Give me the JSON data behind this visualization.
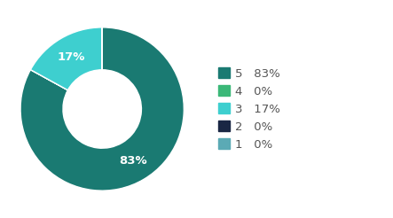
{
  "slices": [
    83,
    0.001,
    17,
    0.001,
    0.001
  ],
  "colors": [
    "#1a7a72",
    "#3bb878",
    "#3ecfcf",
    "#1a2744",
    "#5baab5"
  ],
  "slice_labels": [
    {
      "text": "83%",
      "index": 0
    },
    {
      "text": "17%",
      "index": 2
    }
  ],
  "legend_items": [
    {
      "label": "5",
      "pct": "83%",
      "color": "#1a7a72"
    },
    {
      "label": "4",
      "pct": "0%",
      "color": "#3bb878"
    },
    {
      "label": "3",
      "pct": "17%",
      "color": "#3ecfcf"
    },
    {
      "label": "2",
      "pct": "0%",
      "color": "#1a2744"
    },
    {
      "label": "1",
      "pct": "0%",
      "color": "#5baab5"
    }
  ],
  "bg_color": "#ffffff",
  "text_color": "#555555",
  "label_color": "#ffffff",
  "font_size": 9.5,
  "legend_font_size": 9.5,
  "donut_width": 0.52,
  "startangle": 90
}
